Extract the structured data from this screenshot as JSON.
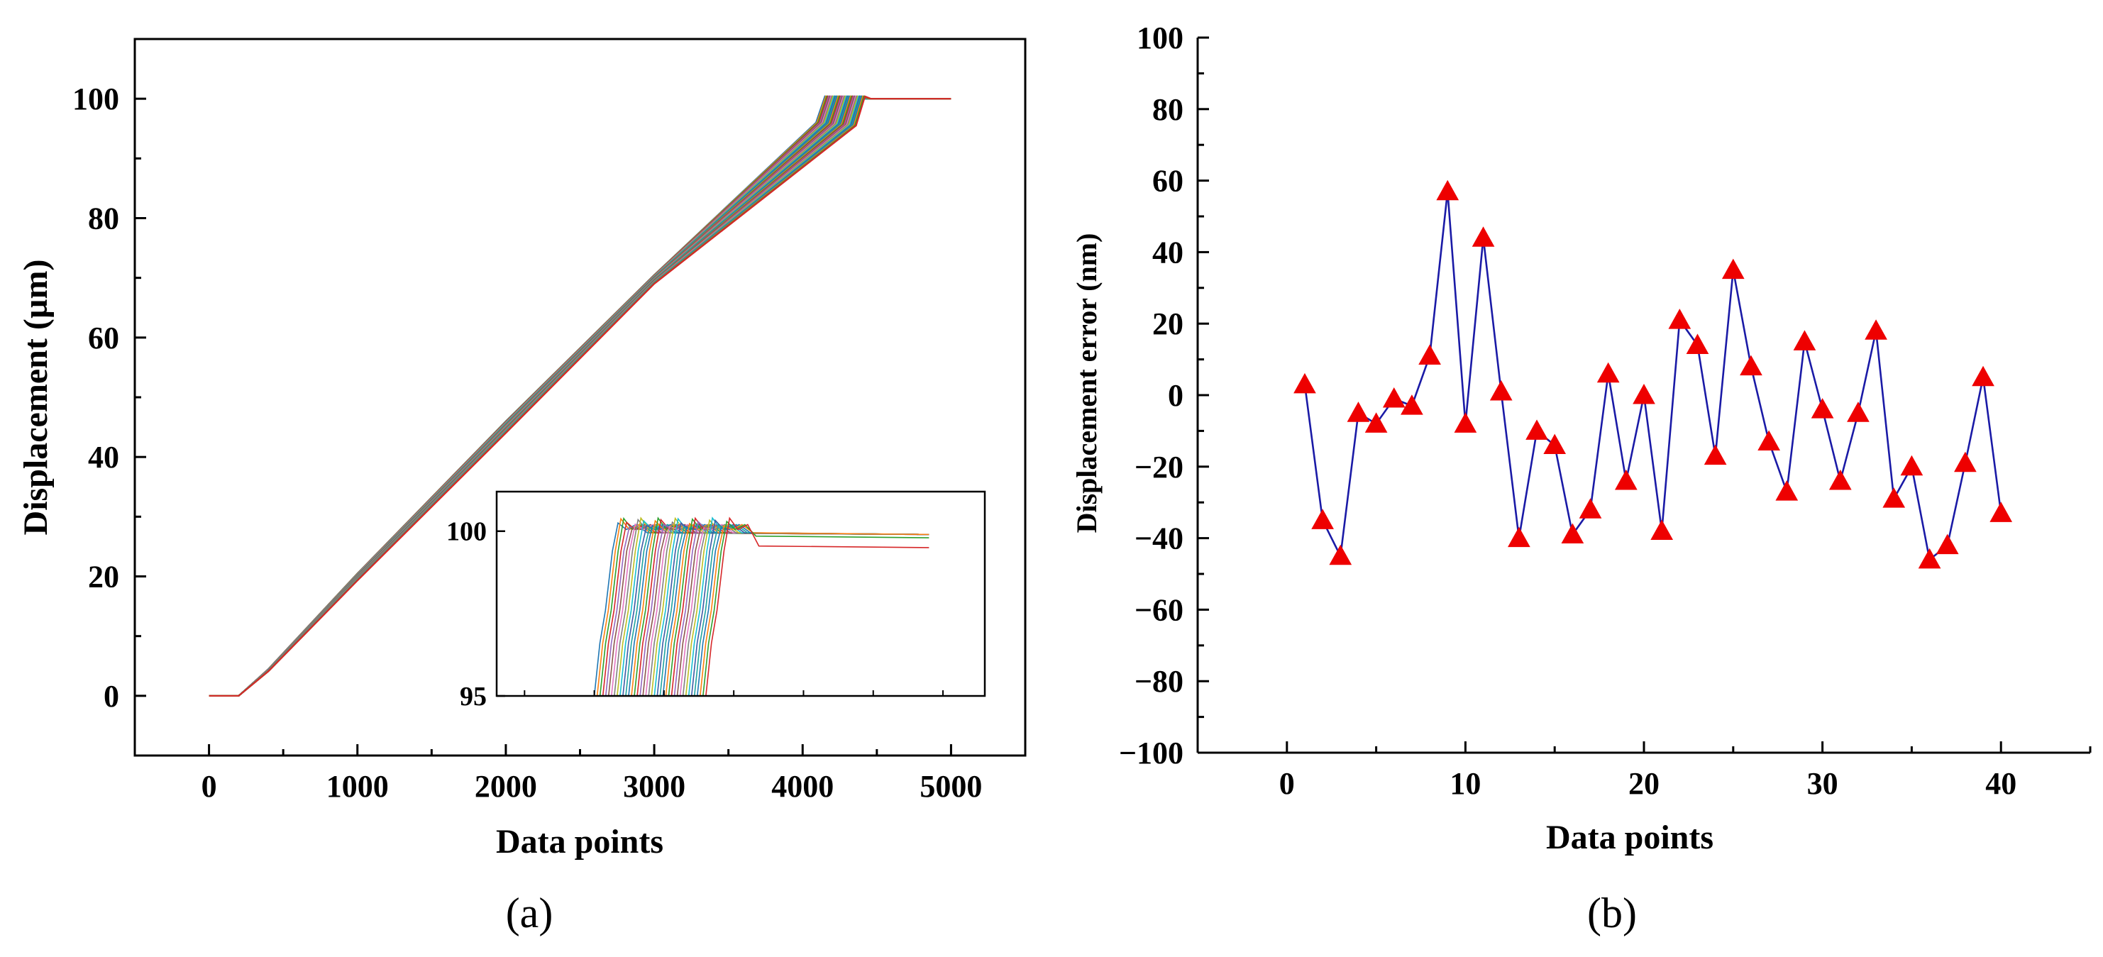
{
  "chart_data": [
    {
      "panel": "(a)",
      "type": "line",
      "xlabel": "Data points",
      "ylabel": "Displacement (µm)",
      "xlim": [
        -500,
        5500
      ],
      "ylim": [
        -10,
        110
      ],
      "xticks": [
        0,
        1000,
        2000,
        3000,
        4000,
        5000
      ],
      "yticks": [
        0,
        20,
        40,
        60,
        80,
        100
      ],
      "description_series": "40 overlapping displacement traces: flat at 0 until ~200 points, linear rise to ~96-100 µm between ~4150-4450 points, then flat at ~100 µm until 5000.",
      "series_summary": {
        "count": 40,
        "start_flat_end": 200,
        "mid_x": 2000,
        "mid_y_range": [
          44,
          46
        ],
        "ramp_end_x_range": [
          4150,
          4420
        ],
        "plateau_y": 100,
        "x_end": 5000
      },
      "inset": {
        "ylim": [
          95,
          101.2
        ],
        "yticks": [
          95,
          100
        ],
        "xlim": [
          1800,
          5300
        ],
        "plateau_levels": [
          99.9,
          99.8,
          99.5
        ],
        "rise_x_range": [
          2500,
          3300
        ]
      },
      "colors": [
        "#1f77b4",
        "#ff7f0e",
        "#2ca02c",
        "#d62728",
        "#9467bd",
        "#8c564b",
        "#e377c2",
        "#7f7f7f",
        "#bcbd22",
        "#17becf",
        "#3b5ba5",
        "#20a39e"
      ]
    },
    {
      "panel": "(b)",
      "type": "line",
      "marker": "triangle",
      "xlabel": "Data points",
      "ylabel": "Displacement error  (nm)",
      "xlim": [
        -5,
        45
      ],
      "ylim": [
        -100,
        100
      ],
      "xticks": [
        0,
        10,
        20,
        30,
        40
      ],
      "yticks": [
        -100,
        -80,
        -60,
        -40,
        -20,
        0,
        20,
        40,
        60,
        80,
        100
      ],
      "x": [
        1,
        2,
        3,
        4,
        5,
        6,
        7,
        8,
        9,
        10,
        11,
        12,
        13,
        14,
        15,
        16,
        17,
        18,
        19,
        20,
        21,
        22,
        23,
        24,
        25,
        26,
        27,
        28,
        29,
        30,
        31,
        32,
        33,
        34,
        35,
        36,
        37,
        38,
        39,
        40
      ],
      "y": [
        3,
        -35,
        -45,
        -5,
        -8,
        -1,
        -3,
        11,
        57,
        -8,
        44,
        1,
        -40,
        -10,
        -14,
        -39,
        -32,
        6,
        -24,
        0,
        -38,
        21,
        14,
        -17,
        35,
        8,
        -13,
        -27,
        15,
        -4,
        -24,
        -5,
        18,
        -29,
        -20,
        -46,
        -42,
        -19,
        5,
        -33
      ],
      "line_color": "#1a1aa6",
      "marker_color": "#ee0000"
    }
  ],
  "labels": {
    "panel_a_tag": "(a)",
    "panel_b_tag": "(b)"
  }
}
